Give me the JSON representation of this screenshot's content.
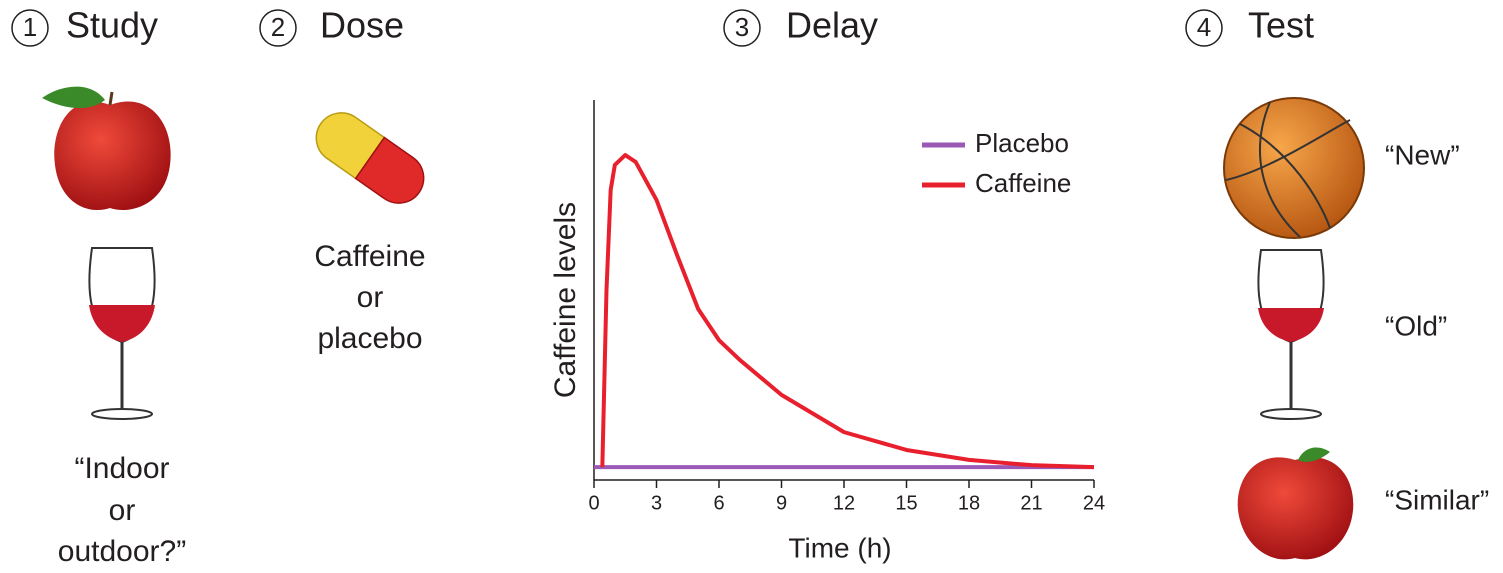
{
  "steps": [
    {
      "number": "1",
      "title": "Study",
      "caption": [
        "“Indoor",
        "or",
        "outdoor?”"
      ]
    },
    {
      "number": "2",
      "title": "Dose",
      "caption": [
        "Caffeine",
        "or",
        "placebo"
      ]
    },
    {
      "number": "3",
      "title": "Delay"
    },
    {
      "number": "4",
      "title": "Test",
      "labels": [
        "“New”",
        "“Old”",
        "“Similar”"
      ]
    }
  ],
  "chart_data": {
    "type": "line",
    "xlabel": "Time (h)",
    "ylabel": "Caffeine levels",
    "xlim": [
      0,
      24
    ],
    "xticks": [
      0,
      3,
      6,
      9,
      12,
      15,
      18,
      21,
      24
    ],
    "ylim": [
      0,
      100
    ],
    "series": [
      {
        "name": "Placebo",
        "color": "#9b59b6",
        "x": [
          0,
          24
        ],
        "values": [
          3.4,
          3.4
        ]
      },
      {
        "name": "Caffeine",
        "color": "#e8202e",
        "x": [
          0.4,
          0.6,
          0.8,
          1,
          1.5,
          2,
          3,
          4,
          5,
          6,
          7,
          9,
          12,
          15,
          18,
          21,
          24
        ],
        "values": [
          3.4,
          50,
          76.3,
          82.9,
          85.5,
          83.7,
          73.7,
          59,
          45,
          36.8,
          31.6,
          22.4,
          12.6,
          7.9,
          5.3,
          3.9,
          3.4
        ]
      }
    ]
  }
}
